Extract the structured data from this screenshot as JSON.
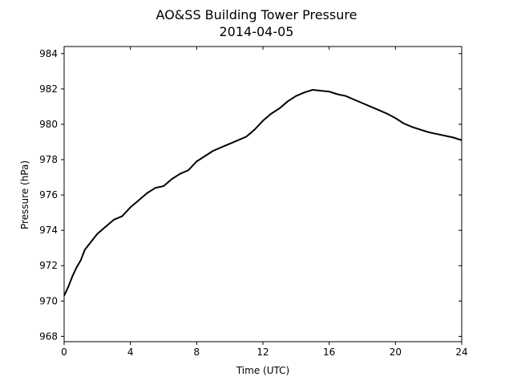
{
  "chart_data": {
    "type": "line",
    "title": "AO&SS Building Tower Pressure",
    "subtitle": "2014-04-05",
    "xlabel": "Time (UTC)",
    "ylabel": "Pressure (hPa)",
    "xlim": [
      0,
      24
    ],
    "ylim": [
      967.7,
      984.4
    ],
    "xticks": [
      0,
      4,
      8,
      12,
      16,
      20,
      24
    ],
    "yticks": [
      968,
      970,
      972,
      974,
      976,
      978,
      980,
      982,
      984
    ],
    "grid": false,
    "line_color": "#000000",
    "series": [
      {
        "x": [
          0,
          0.25,
          0.5,
          0.75,
          1,
          1.25,
          1.5,
          2,
          2.5,
          3,
          3.5,
          4,
          4.5,
          5,
          5.5,
          6,
          6.5,
          7,
          7.5,
          8,
          8.5,
          9,
          9.5,
          10,
          10.5,
          11,
          11.5,
          12,
          12.5,
          13,
          13.5,
          14,
          14.5,
          15,
          15.5,
          16,
          16.5,
          17,
          17.5,
          18,
          18.5,
          19,
          19.5,
          20,
          20.5,
          21,
          21.5,
          22,
          22.5,
          23,
          23.5,
          24
        ],
        "y": [
          970.3,
          970.8,
          971.4,
          971.9,
          972.3,
          972.9,
          973.2,
          973.8,
          974.2,
          974.6,
          974.8,
          975.3,
          975.7,
          976.1,
          976.4,
          976.5,
          976.9,
          977.2,
          977.4,
          977.9,
          978.2,
          978.5,
          978.7,
          978.9,
          979.1,
          979.3,
          979.7,
          980.2,
          980.6,
          980.9,
          981.3,
          981.6,
          981.8,
          981.95,
          981.9,
          981.85,
          981.7,
          981.6,
          981.4,
          981.2,
          981.0,
          980.8,
          980.6,
          980.35,
          980.05,
          979.85,
          979.7,
          979.55,
          979.45,
          979.35,
          979.25,
          979.1
        ]
      }
    ]
  }
}
